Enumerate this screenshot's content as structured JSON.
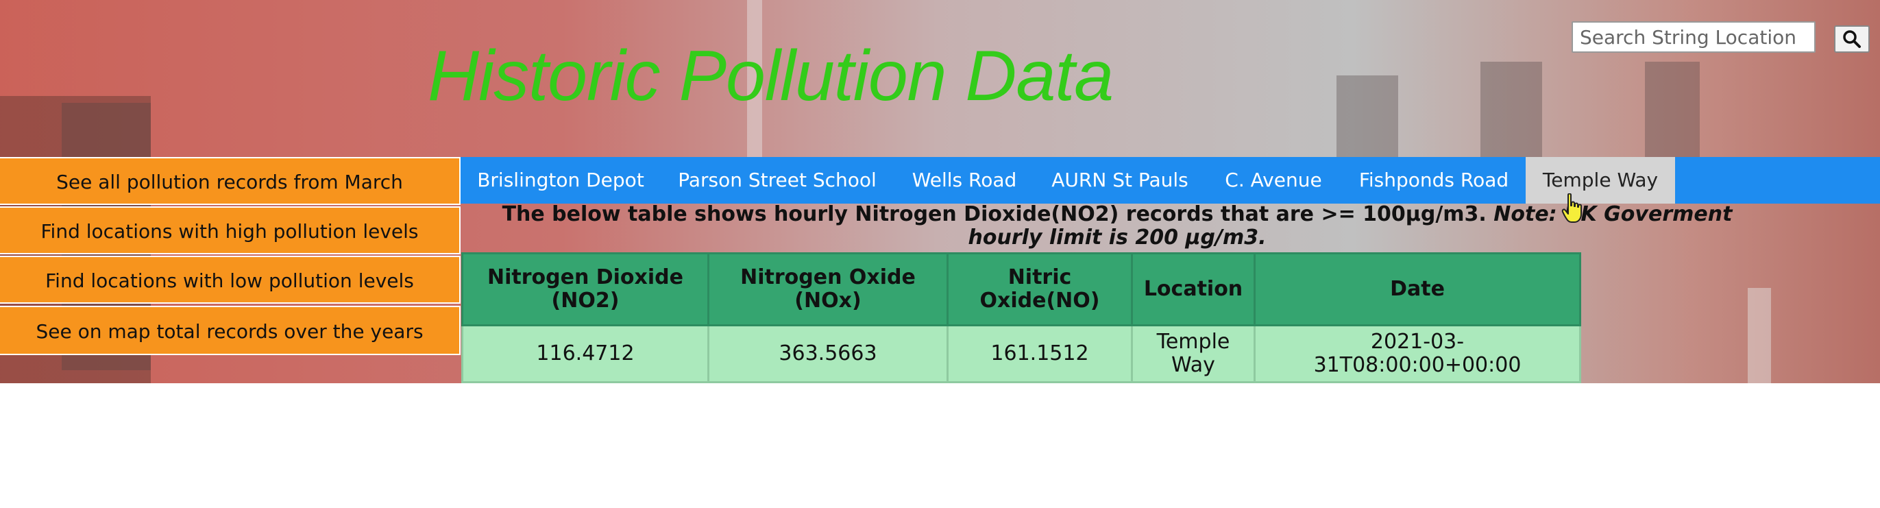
{
  "header": {
    "title": "Historic Pollution Data",
    "search_placeholder": "Search String Location",
    "search_icon": "search-icon"
  },
  "nav": {
    "items": [
      {
        "label": "Brislington Depot"
      },
      {
        "label": "Parson Street School"
      },
      {
        "label": "Wells Road"
      },
      {
        "label": "AURN St Pauls"
      },
      {
        "label": "C. Avenue"
      },
      {
        "label": "Fishponds Road"
      },
      {
        "label": "Temple Way"
      }
    ],
    "active": "Temple Way",
    "color": "#1e8cf0"
  },
  "sidebar": {
    "items": [
      {
        "label": "See all pollution records from March"
      },
      {
        "label": "Find locations with high pollution levels"
      },
      {
        "label": "Find locations with low pollution levels"
      },
      {
        "label": "See on map total records over the years"
      }
    ],
    "color": "#f7941d"
  },
  "caption": {
    "main": "The below table shows hourly Nitrogen Dioxide(NO2) records that are >= 100µg/m3.",
    "note": "Note: UK Goverment hourly limit is 200 µg/m3."
  },
  "table": {
    "headers": [
      "Nitrogen Dioxide (NO2)",
      "Nitrogen Oxide (NOx)",
      "Nitric Oxide(NO)",
      "Location",
      "Date"
    ],
    "rows": [
      [
        "116.4712",
        "363.5663",
        "161.1512",
        "Temple Way",
        "2021-03-31T08:00:00+00:00"
      ]
    ],
    "header_color": "#35a570",
    "row_color": "#abe9bc"
  },
  "colors": {
    "title": "#33cc1a"
  }
}
